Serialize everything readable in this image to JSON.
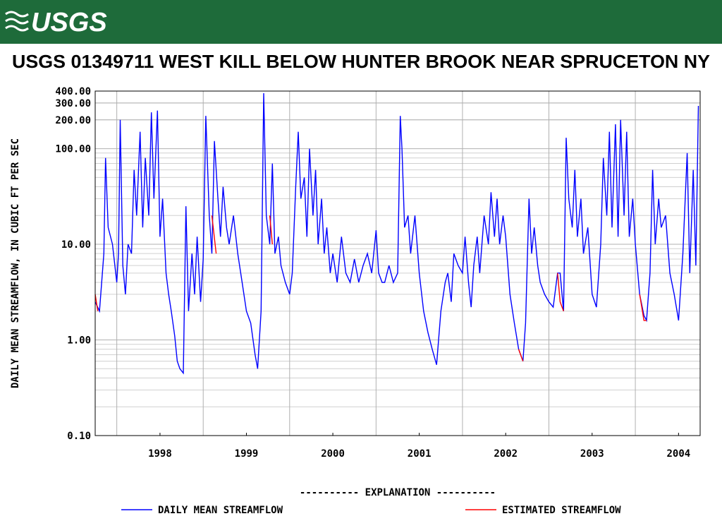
{
  "header": {
    "logo": "USGS"
  },
  "chart_data": {
    "type": "line",
    "title": "USGS 01349711 WEST KILL BELOW HUNTER BROOK NEAR SPRUCETON NY",
    "ylabel": "DAILY MEAN STREAMFLOW, IN CUBIC FT PER SEC",
    "legend_title": "----------  EXPLANATION  ----------",
    "log": true,
    "grid": true,
    "minor_grid": true,
    "xlim": [
      1997.75,
      2004.75
    ],
    "xticks": [
      {
        "value": 1998.5,
        "label": "1998"
      },
      {
        "value": 1999.5,
        "label": "1999"
      },
      {
        "value": 2000.5,
        "label": "2000"
      },
      {
        "value": 2001.5,
        "label": "2001"
      },
      {
        "value": 2002.5,
        "label": "2002"
      },
      {
        "value": 2003.5,
        "label": "2003"
      },
      {
        "value": 2004.5,
        "label": "2004"
      }
    ],
    "xgrid": [
      1998,
      1999,
      2000,
      2001,
      2002,
      2003,
      2004
    ],
    "ylim": [
      0.1,
      400
    ],
    "yticks": [
      {
        "value": 0.1,
        "label": "0.10"
      },
      {
        "value": 1,
        "label": "1.00"
      },
      {
        "value": 10,
        "label": "10.00"
      },
      {
        "value": 100,
        "label": "100.00"
      },
      {
        "value": 200,
        "label": "200.00"
      },
      {
        "value": 300,
        "label": "300.00"
      },
      {
        "value": 400,
        "label": "400.00"
      }
    ],
    "series": [
      {
        "name": "DAILY MEAN STREAMFLOW",
        "color": "#0000ff",
        "x": [
          1997.75,
          1997.8,
          1997.85,
          1997.87,
          1997.9,
          1997.95,
          1998.0,
          1998.02,
          1998.04,
          1998.07,
          1998.1,
          1998.13,
          1998.17,
          1998.2,
          1998.23,
          1998.27,
          1998.3,
          1998.33,
          1998.37,
          1998.4,
          1998.43,
          1998.47,
          1998.5,
          1998.53,
          1998.57,
          1998.6,
          1998.63,
          1998.67,
          1998.7,
          1998.73,
          1998.77,
          1998.8,
          1998.83,
          1998.87,
          1998.9,
          1998.93,
          1998.97,
          1999.0,
          1999.03,
          1999.07,
          1999.1,
          1999.13,
          1999.17,
          1999.2,
          1999.23,
          1999.27,
          1999.3,
          1999.35,
          1999.4,
          1999.45,
          1999.5,
          1999.55,
          1999.6,
          1999.63,
          1999.67,
          1999.7,
          1999.73,
          1999.77,
          1999.8,
          1999.83,
          1999.87,
          1999.9,
          1999.95,
          2000.0,
          2000.03,
          2000.07,
          2000.1,
          2000.13,
          2000.17,
          2000.2,
          2000.23,
          2000.27,
          2000.3,
          2000.33,
          2000.37,
          2000.4,
          2000.43,
          2000.47,
          2000.5,
          2000.55,
          2000.6,
          2000.65,
          2000.7,
          2000.75,
          2000.8,
          2000.85,
          2000.9,
          2000.95,
          2001.0,
          2001.03,
          2001.07,
          2001.1,
          2001.15,
          2001.2,
          2001.25,
          2001.28,
          2001.3,
          2001.33,
          2001.37,
          2001.4,
          2001.45,
          2001.5,
          2001.55,
          2001.6,
          2001.65,
          2001.7,
          2001.75,
          2001.8,
          2001.83,
          2001.87,
          2001.9,
          2001.95,
          2002.0,
          2002.03,
          2002.07,
          2002.1,
          2002.13,
          2002.17,
          2002.2,
          2002.25,
          2002.3,
          2002.33,
          2002.37,
          2002.4,
          2002.43,
          2002.47,
          2002.5,
          2002.55,
          2002.6,
          2002.65,
          2002.7,
          2002.73,
          2002.77,
          2002.8,
          2002.83,
          2002.87,
          2002.9,
          2002.95,
          2003.0,
          2003.05,
          2003.1,
          2003.13,
          2003.17,
          2003.2,
          2003.23,
          2003.27,
          2003.3,
          2003.33,
          2003.37,
          2003.4,
          2003.45,
          2003.5,
          2003.55,
          2003.6,
          2003.63,
          2003.67,
          2003.7,
          2003.73,
          2003.77,
          2003.8,
          2003.83,
          2003.87,
          2003.9,
          2003.93,
          2003.97,
          2004.0,
          2004.05,
          2004.1,
          2004.13,
          2004.17,
          2004.2,
          2004.23,
          2004.27,
          2004.3,
          2004.35,
          2004.4,
          2004.45,
          2004.5,
          2004.55,
          2004.6,
          2004.63,
          2004.67,
          2004.7,
          2004.73
        ],
        "values": [
          2.5,
          2.0,
          8,
          80,
          15,
          10,
          4,
          8,
          200,
          6,
          3,
          10,
          8,
          60,
          20,
          150,
          15,
          80,
          20,
          240,
          30,
          250,
          12,
          30,
          5,
          3,
          2,
          1.1,
          0.6,
          0.5,
          0.45,
          25,
          2,
          8,
          3,
          12,
          2.5,
          7,
          220,
          20,
          8,
          120,
          30,
          12,
          40,
          15,
          10,
          20,
          8,
          4,
          2,
          1.5,
          0.7,
          0.5,
          2,
          380,
          20,
          10,
          70,
          8,
          12,
          6,
          4,
          3,
          5,
          40,
          150,
          30,
          50,
          12,
          100,
          20,
          60,
          10,
          30,
          8,
          15,
          5,
          8,
          4,
          12,
          5,
          4,
          7,
          4,
          6,
          8,
          5,
          14,
          5,
          4,
          4,
          6,
          4,
          5,
          220,
          100,
          15,
          20,
          8,
          20,
          5,
          2,
          1.2,
          0.8,
          0.55,
          2,
          4,
          5,
          2.5,
          8,
          6,
          5,
          12,
          4,
          2.2,
          6,
          12,
          5,
          20,
          10,
          35,
          12,
          30,
          10,
          20,
          12,
          3,
          1.5,
          0.8,
          0.6,
          1.5,
          30,
          8,
          15,
          6,
          4,
          3,
          2.5,
          2.2,
          5,
          5,
          2,
          130,
          30,
          15,
          60,
          12,
          30,
          8,
          15,
          3,
          2.2,
          10,
          80,
          20,
          150,
          15,
          180,
          12,
          200,
          20,
          150,
          12,
          30,
          10,
          3,
          1.8,
          1.6,
          5,
          60,
          10,
          30,
          15,
          20,
          5,
          3,
          1.6,
          8,
          90,
          5,
          60,
          6,
          280
        ]
      },
      {
        "name": "ESTIMATED STREAMFLOW",
        "color": "#ff0000",
        "x": [
          1997.75,
          1997.78,
          1997.79,
          1999.1,
          1999.15,
          1999.16,
          1999.77,
          1999.8,
          1999.81,
          2002.65,
          2002.7,
          2002.71,
          2003.1,
          2003.13,
          2003.17,
          2003.18,
          2004.05,
          2004.1,
          2004.13
        ],
        "values": [
          3,
          2,
          null,
          20,
          8,
          null,
          20,
          10,
          null,
          0.8,
          0.6,
          null,
          5,
          2.5,
          2,
          null,
          3,
          1.6,
          1.6
        ]
      }
    ]
  }
}
